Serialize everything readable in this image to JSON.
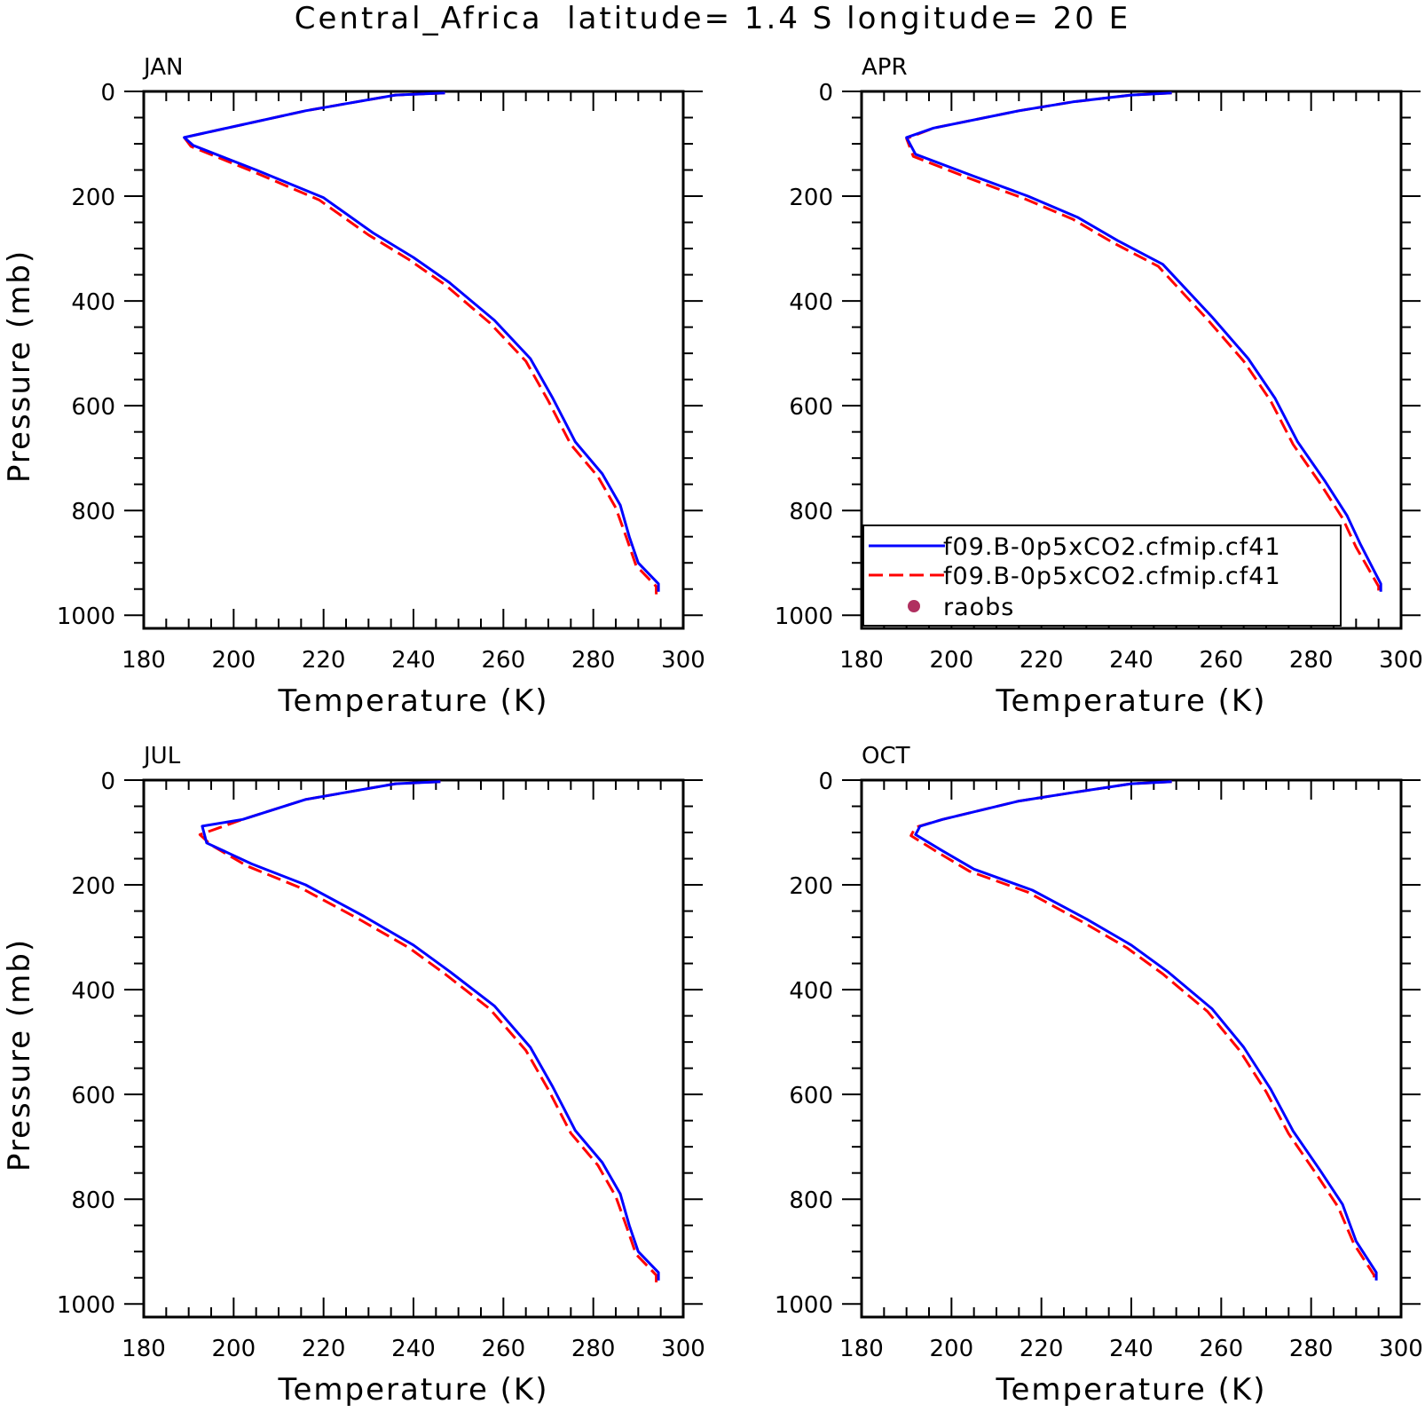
{
  "figure": {
    "title": "Central_Africa  latitude= 1.4 S longitude= 20 E"
  },
  "legend": {
    "entries": [
      {
        "label": "f09.B-0p5xCO2.cfmip.cf41",
        "color": "#0000ff",
        "style": "solid"
      },
      {
        "label": "f09.B-0p5xCO2.cfmip.cf41",
        "color": "#ff0000",
        "style": "dashed"
      },
      {
        "label": "raobs",
        "color": "#b03060",
        "style": "marker"
      }
    ]
  },
  "chart_data": [
    {
      "type": "line",
      "panel_label": "JAN",
      "xlabel": "Temperature (K)",
      "ylabel": "Pressure (mb)",
      "xlim": [
        180,
        300
      ],
      "ylim": [
        1025,
        0
      ],
      "x_ticks": [
        "180",
        "200",
        "220",
        "240",
        "260",
        "280",
        "300"
      ],
      "y_ticks": [
        "0",
        "200",
        "400",
        "600",
        "800",
        "1000"
      ],
      "show_legend": false,
      "series": [
        {
          "color": "#0000ff",
          "style": "solid",
          "points": [
            [
              247,
              3
            ],
            [
              236,
              7
            ],
            [
              216,
              37
            ],
            [
              189,
              88
            ],
            [
              191,
              103
            ],
            [
              205,
              150
            ],
            [
              220,
              203
            ],
            [
              231,
              270
            ],
            [
              240,
              317
            ],
            [
              248,
              365
            ],
            [
              258,
              437
            ],
            [
              266,
              510
            ],
            [
              271,
              586
            ],
            [
              276,
              669
            ],
            [
              282,
              730
            ],
            [
              286,
              790
            ],
            [
              288,
              850
            ],
            [
              290,
              900
            ],
            [
              294.5,
              940
            ],
            [
              294.5,
              955
            ]
          ]
        },
        {
          "color": "#ff0000",
          "style": "dashed",
          "points": [
            [
              247,
              3
            ],
            [
              236,
              7
            ],
            [
              216,
              37
            ],
            [
              189,
              88
            ],
            [
              190.5,
              105
            ],
            [
              204,
              152
            ],
            [
              219,
              207
            ],
            [
              230,
              274
            ],
            [
              239,
              321
            ],
            [
              247,
              369
            ],
            [
              257,
              442
            ],
            [
              265,
              515
            ],
            [
              270,
              591
            ],
            [
              275,
              674
            ],
            [
              281,
              735
            ],
            [
              285,
              795
            ],
            [
              287.5,
              855
            ],
            [
              289.5,
              905
            ],
            [
              294,
              945
            ],
            [
              294,
              960
            ]
          ]
        }
      ]
    },
    {
      "type": "line",
      "panel_label": "APR",
      "xlabel": "Temperature (K)",
      "ylabel": "",
      "xlim": [
        180,
        300
      ],
      "ylim": [
        1025,
        0
      ],
      "x_ticks": [
        "180",
        "200",
        "220",
        "240",
        "260",
        "280",
        "300"
      ],
      "y_ticks": [
        "0",
        "200",
        "400",
        "600",
        "800",
        "1000"
      ],
      "show_legend": true,
      "series": [
        {
          "color": "#0000ff",
          "style": "solid",
          "points": [
            [
              249,
              3
            ],
            [
              240,
              7
            ],
            [
              227,
              20
            ],
            [
              215,
              37
            ],
            [
              196,
              70
            ],
            [
              190,
              88
            ],
            [
              192,
              120
            ],
            [
              205,
              162
            ],
            [
              217,
              200
            ],
            [
              228,
              240
            ],
            [
              237,
              285
            ],
            [
              247,
              330
            ],
            [
              258,
              431
            ],
            [
              266,
              510
            ],
            [
              272,
              586
            ],
            [
              277,
              669
            ],
            [
              283,
              743
            ],
            [
              288,
              810
            ],
            [
              291,
              865
            ],
            [
              295.5,
              940
            ],
            [
              295.5,
              955
            ]
          ]
        },
        {
          "color": "#ff0000",
          "style": "dashed",
          "points": [
            [
              249,
              3
            ],
            [
              240,
              7
            ],
            [
              227,
              20
            ],
            [
              215,
              37
            ],
            [
              196,
              70
            ],
            [
              190,
              90
            ],
            [
              191.5,
              124
            ],
            [
              204,
              166
            ],
            [
              216,
              204
            ],
            [
              227,
              244
            ],
            [
              236,
              289
            ],
            [
              246,
              334
            ],
            [
              257,
              436
            ],
            [
              265,
              515
            ],
            [
              271,
              591
            ],
            [
              276,
              674
            ],
            [
              282,
              748
            ],
            [
              287,
              815
            ],
            [
              290,
              870
            ],
            [
              295,
              945
            ],
            [
              295,
              960
            ]
          ]
        }
      ]
    },
    {
      "type": "line",
      "panel_label": "JUL",
      "xlabel": "Temperature (K)",
      "ylabel": "Pressure (mb)",
      "xlim": [
        180,
        300
      ],
      "ylim": [
        1025,
        0
      ],
      "x_ticks": [
        "180",
        "200",
        "220",
        "240",
        "260",
        "280",
        "300"
      ],
      "y_ticks": [
        "0",
        "200",
        "400",
        "600",
        "800",
        "1000"
      ],
      "show_legend": false,
      "series": [
        {
          "color": "#0000ff",
          "style": "solid",
          "points": [
            [
              246,
              3
            ],
            [
              236,
              7
            ],
            [
              216,
              37
            ],
            [
              202,
              75
            ],
            [
              193,
              88
            ],
            [
              194,
              120
            ],
            [
              204,
              160
            ],
            [
              216,
              200
            ],
            [
              229,
              260
            ],
            [
              240,
              315
            ],
            [
              248,
              365
            ],
            [
              258,
              431
            ],
            [
              266,
              510
            ],
            [
              271,
              586
            ],
            [
              276,
              669
            ],
            [
              282,
              730
            ],
            [
              286,
              790
            ],
            [
              288,
              850
            ],
            [
              290,
              900
            ],
            [
              294.5,
              940
            ],
            [
              294.5,
              955
            ]
          ]
        },
        {
          "color": "#ff0000",
          "style": "dashed",
          "points": [
            [
              246,
              3
            ],
            [
              236,
              7
            ],
            [
              216,
              37
            ],
            [
              202,
              75
            ],
            [
              192.5,
              104
            ],
            [
              195,
              124
            ],
            [
              203,
              164
            ],
            [
              215,
              206
            ],
            [
              228,
              266
            ],
            [
              239,
              320
            ],
            [
              247,
              370
            ],
            [
              257,
              437
            ],
            [
              265,
              516
            ],
            [
              270,
              591
            ],
            [
              275,
              674
            ],
            [
              281,
              735
            ],
            [
              285,
              795
            ],
            [
              287.5,
              855
            ],
            [
              289.5,
              905
            ],
            [
              294,
              945
            ],
            [
              294,
              960
            ]
          ]
        }
      ]
    },
    {
      "type": "line",
      "panel_label": "OCT",
      "xlabel": "Temperature (K)",
      "ylabel": "",
      "xlim": [
        180,
        300
      ],
      "ylim": [
        1025,
        0
      ],
      "x_ticks": [
        "180",
        "200",
        "220",
        "240",
        "260",
        "280",
        "300"
      ],
      "y_ticks": [
        "0",
        "200",
        "400",
        "600",
        "800",
        "1000"
      ],
      "show_legend": false,
      "series": [
        {
          "color": "#0000ff",
          "style": "solid",
          "points": [
            [
              249,
              3
            ],
            [
              240,
              7
            ],
            [
              226,
              25
            ],
            [
              215,
              40
            ],
            [
              198,
              75
            ],
            [
              193,
              88
            ],
            [
              192,
              104
            ],
            [
              198,
              135
            ],
            [
              205,
              170
            ],
            [
              218,
              210
            ],
            [
              230,
              265
            ],
            [
              240,
              315
            ],
            [
              248,
              365
            ],
            [
              258,
              437
            ],
            [
              265,
              510
            ],
            [
              271,
              590
            ],
            [
              276,
              670
            ],
            [
              282,
              745
            ],
            [
              287,
              810
            ],
            [
              290,
              880
            ],
            [
              294.5,
              940
            ],
            [
              294.5,
              955
            ]
          ]
        },
        {
          "color": "#ff0000",
          "style": "dashed",
          "points": [
            [
              249,
              3
            ],
            [
              240,
              7
            ],
            [
              226,
              25
            ],
            [
              215,
              40
            ],
            [
              198,
              75
            ],
            [
              192,
              90
            ],
            [
              191,
              106
            ],
            [
              197,
              138
            ],
            [
              204,
              174
            ],
            [
              217,
              214
            ],
            [
              229,
              270
            ],
            [
              239,
              320
            ],
            [
              247,
              370
            ],
            [
              257,
              442
            ],
            [
              264,
              515
            ],
            [
              270,
              595
            ],
            [
              275,
              675
            ],
            [
              281,
              750
            ],
            [
              286,
              815
            ],
            [
              289.5,
              885
            ],
            [
              294,
              945
            ],
            [
              294,
              960
            ]
          ]
        }
      ]
    }
  ]
}
